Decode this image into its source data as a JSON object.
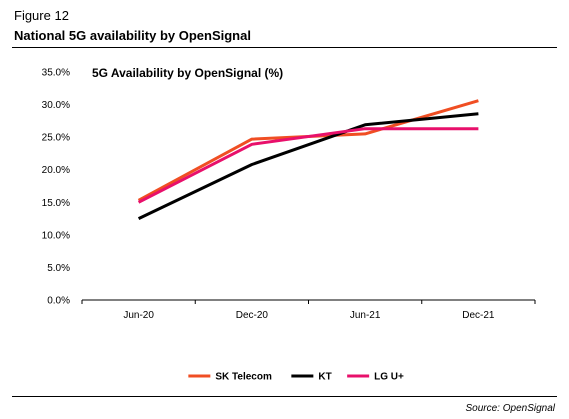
{
  "figure_label": "Figure 12",
  "figure_title": "National 5G availability by OpenSignal",
  "source": "Source: OpenSignal",
  "chart_data": {
    "type": "line",
    "title": "5G Availability by OpenSignal (%)",
    "categories": [
      "Jun-20",
      "Dec-20",
      "Jun-21",
      "Dec-21"
    ],
    "y_ticks": [
      "0.0%",
      "5.0%",
      "10.0%",
      "15.0%",
      "20.0%",
      "25.0%",
      "30.0%",
      "35.0%"
    ],
    "ylim": [
      0,
      35
    ],
    "grid": false,
    "legend_position": "bottom",
    "series": [
      {
        "name": "SK Telecom",
        "color": "#f04e23",
        "values": [
          15.3,
          24.7,
          25.5,
          30.6
        ]
      },
      {
        "name": "KT",
        "color": "#000000",
        "values": [
          12.5,
          20.8,
          26.9,
          28.6
        ]
      },
      {
        "name": "LG U+",
        "color": "#e8106b",
        "values": [
          15.0,
          23.9,
          26.3,
          26.3
        ]
      }
    ]
  }
}
